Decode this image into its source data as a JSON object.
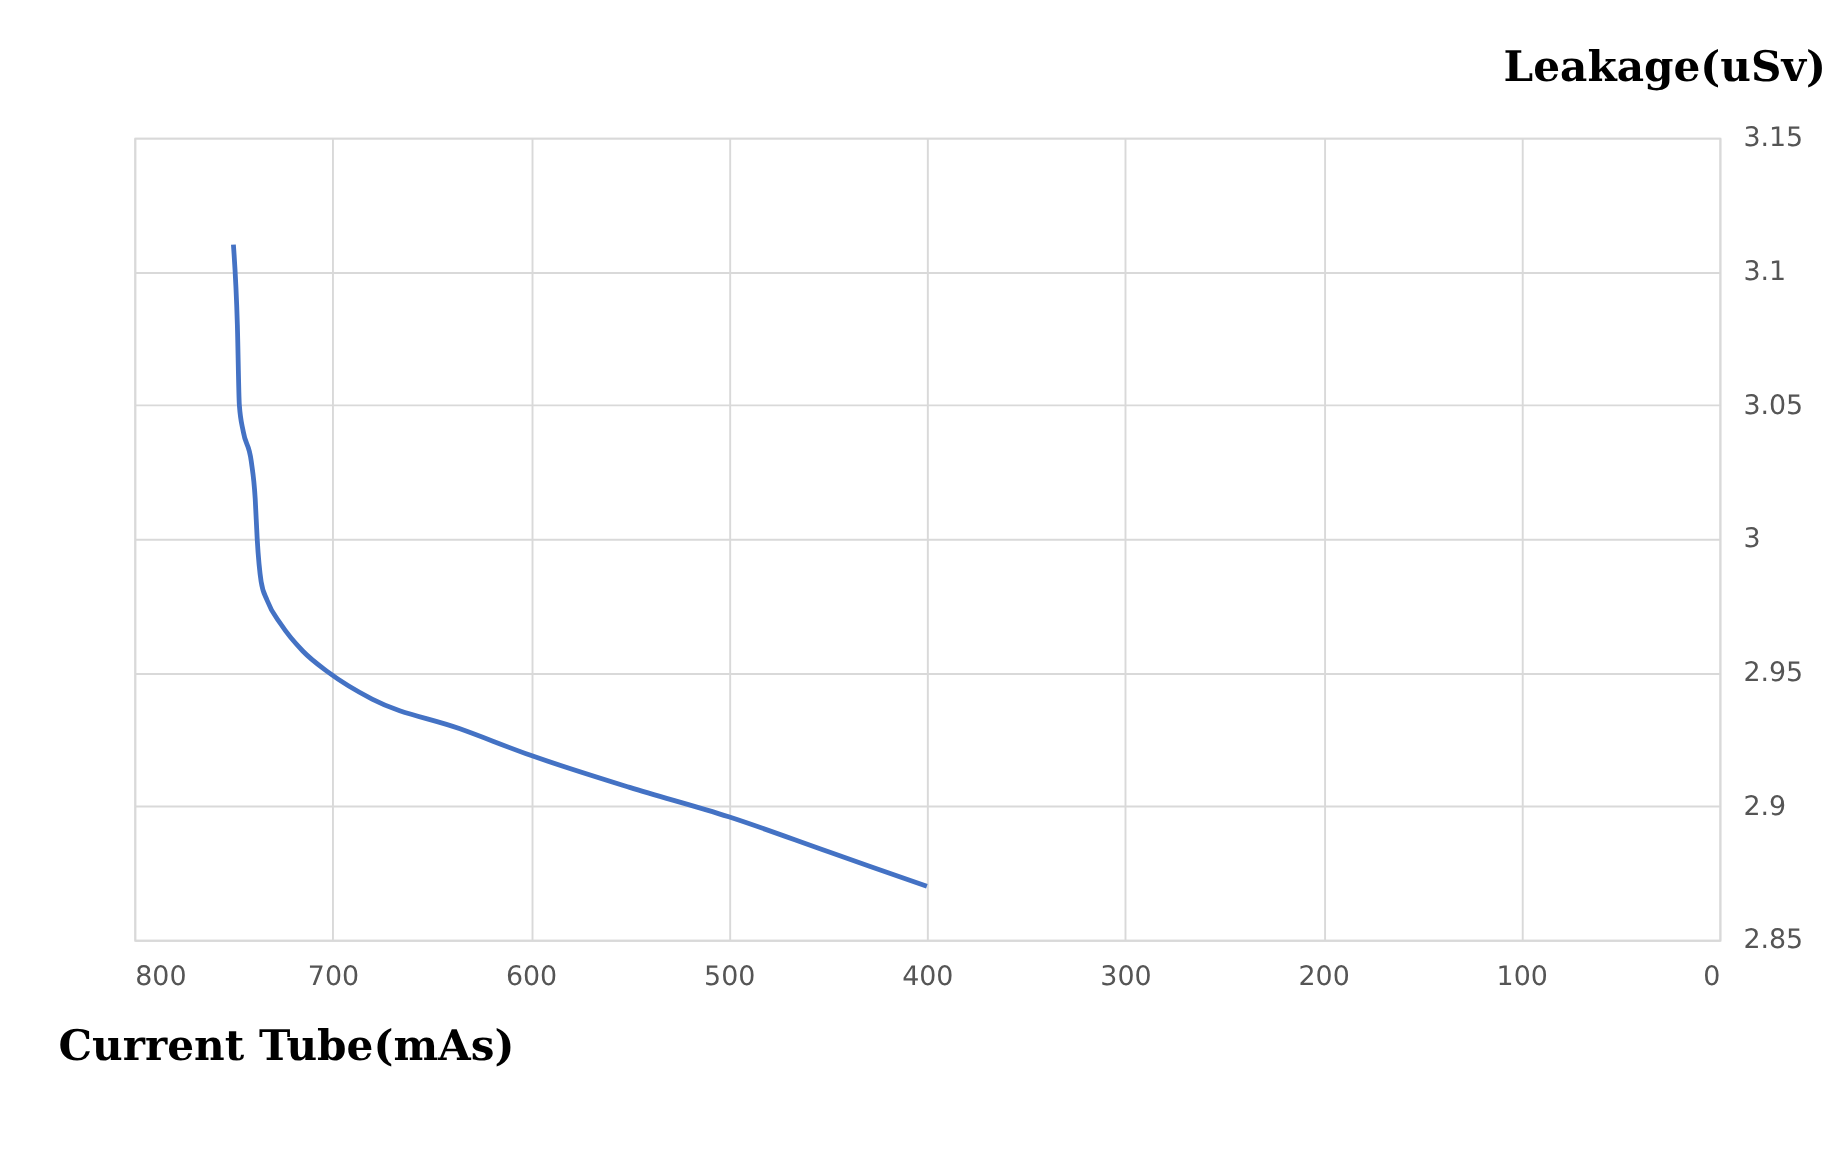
{
  "chart_data": {
    "type": "line",
    "xlabel": "Current Tube(mAs)",
    "ylabel": "Leakage(uSv)",
    "x": [
      750,
      748,
      747,
      745,
      741,
      739,
      738,
      736,
      733,
      726,
      715,
      702,
      680,
      636,
      600,
      550,
      500,
      450,
      400
    ],
    "series": [
      {
        "color": "#4472c4",
        "values": [
          3.11,
          3.08,
          3.05,
          3.04,
          3.029,
          3.015,
          3.0,
          2.984,
          2.977,
          2.968,
          2.958,
          2.95,
          2.94,
          2.929,
          2.919,
          2.907,
          2.896,
          2.883,
          2.87
        ]
      }
    ],
    "xlim": [
      800,
      0
    ],
    "xticks": [
      800,
      700,
      600,
      500,
      400,
      300,
      200,
      100,
      0
    ],
    "ylim": [
      2.85,
      3.15
    ],
    "yticks": [
      2.85,
      2.9,
      2.95,
      3,
      3.05,
      3.1,
      3.15
    ],
    "grid": true,
    "marker": "none",
    "line_style": "solid"
  }
}
